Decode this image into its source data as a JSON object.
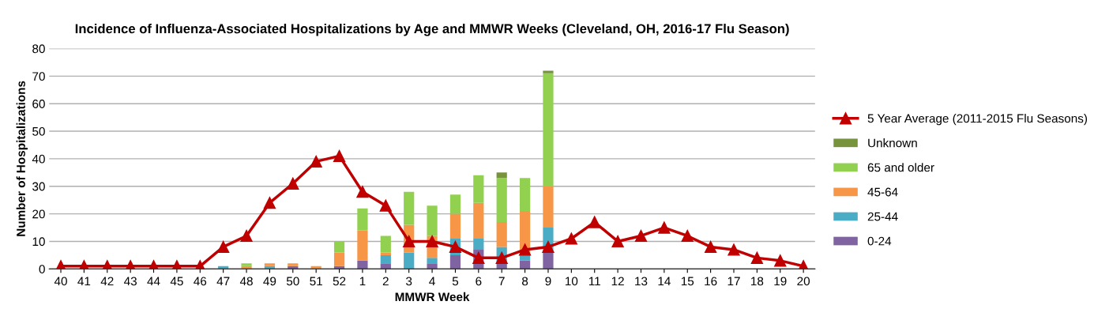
{
  "chart_data": {
    "type": "bar",
    "stacked": true,
    "title": "Incidence of Influenza-Associated Hospitalizations by Age and MMWR Weeks (Cleveland, OH, 2016-17 Flu Season)",
    "xlabel": "MMWR Week",
    "ylabel": "Number of Hospitalizations",
    "categories": [
      "40",
      "41",
      "42",
      "43",
      "44",
      "45",
      "46",
      "47",
      "48",
      "49",
      "50",
      "51",
      "52",
      "1",
      "2",
      "3",
      "4",
      "5",
      "6",
      "7",
      "8",
      "9",
      "10",
      "11",
      "12",
      "13",
      "14",
      "15",
      "16",
      "17",
      "18",
      "19",
      "20"
    ],
    "series": [
      {
        "name": "0-24",
        "color": "#8064a2",
        "values": [
          0,
          0,
          0,
          0,
          0,
          0,
          0,
          0,
          0,
          0,
          1,
          0,
          1,
          3,
          2,
          0,
          2,
          5,
          7,
          2,
          3,
          6,
          0,
          0,
          0,
          0,
          0,
          0,
          0,
          0,
          0,
          0,
          0
        ]
      },
      {
        "name": "25-44",
        "color": "#4bacc6",
        "values": [
          0,
          0,
          0,
          0,
          0,
          0,
          0,
          1,
          0,
          1,
          0,
          0,
          0,
          0,
          3,
          6,
          2,
          6,
          4,
          6,
          2,
          9,
          0,
          0,
          0,
          0,
          0,
          0,
          0,
          0,
          0,
          0,
          0
        ]
      },
      {
        "name": "45-64",
        "color": "#f79646",
        "values": [
          0,
          0,
          0,
          0,
          0,
          0,
          0,
          0,
          1,
          1,
          1,
          1,
          5,
          11,
          1,
          10,
          8,
          9,
          13,
          9,
          16,
          15,
          0,
          0,
          0,
          0,
          0,
          0,
          0,
          0,
          0,
          0,
          0
        ]
      },
      {
        "name": "65 and older",
        "color": "#92d050",
        "values": [
          0,
          0,
          0,
          0,
          0,
          0,
          0,
          0,
          1,
          0,
          0,
          0,
          4,
          8,
          6,
          12,
          11,
          7,
          10,
          16,
          12,
          41,
          0,
          0,
          0,
          0,
          0,
          0,
          0,
          0,
          0,
          0,
          0
        ]
      },
      {
        "name": "Unknown",
        "color": "#77933c",
        "values": [
          0,
          0,
          0,
          0,
          0,
          0,
          0,
          0,
          0,
          0,
          0,
          0,
          0,
          0,
          0,
          0,
          0,
          0,
          0,
          2,
          0,
          1,
          0,
          0,
          0,
          0,
          0,
          0,
          0,
          0,
          0,
          0,
          0
        ]
      },
      {
        "name": "5 Year Average (2011-2015 Flu Seasons)",
        "type": "line",
        "color": "#c00000",
        "marker": "triangle",
        "values": [
          1,
          1,
          1,
          1,
          1,
          1,
          1,
          8,
          12,
          24,
          31,
          39,
          41,
          28,
          23,
          10,
          10,
          8,
          4,
          4,
          7,
          8,
          11,
          17,
          10,
          12,
          15,
          12,
          8,
          7,
          4,
          3,
          1
        ]
      }
    ],
    "ylim": [
      0,
      80
    ],
    "yticks": [
      0,
      10,
      20,
      30,
      40,
      50,
      60,
      70,
      80
    ],
    "grid": "y",
    "legend": "right"
  }
}
